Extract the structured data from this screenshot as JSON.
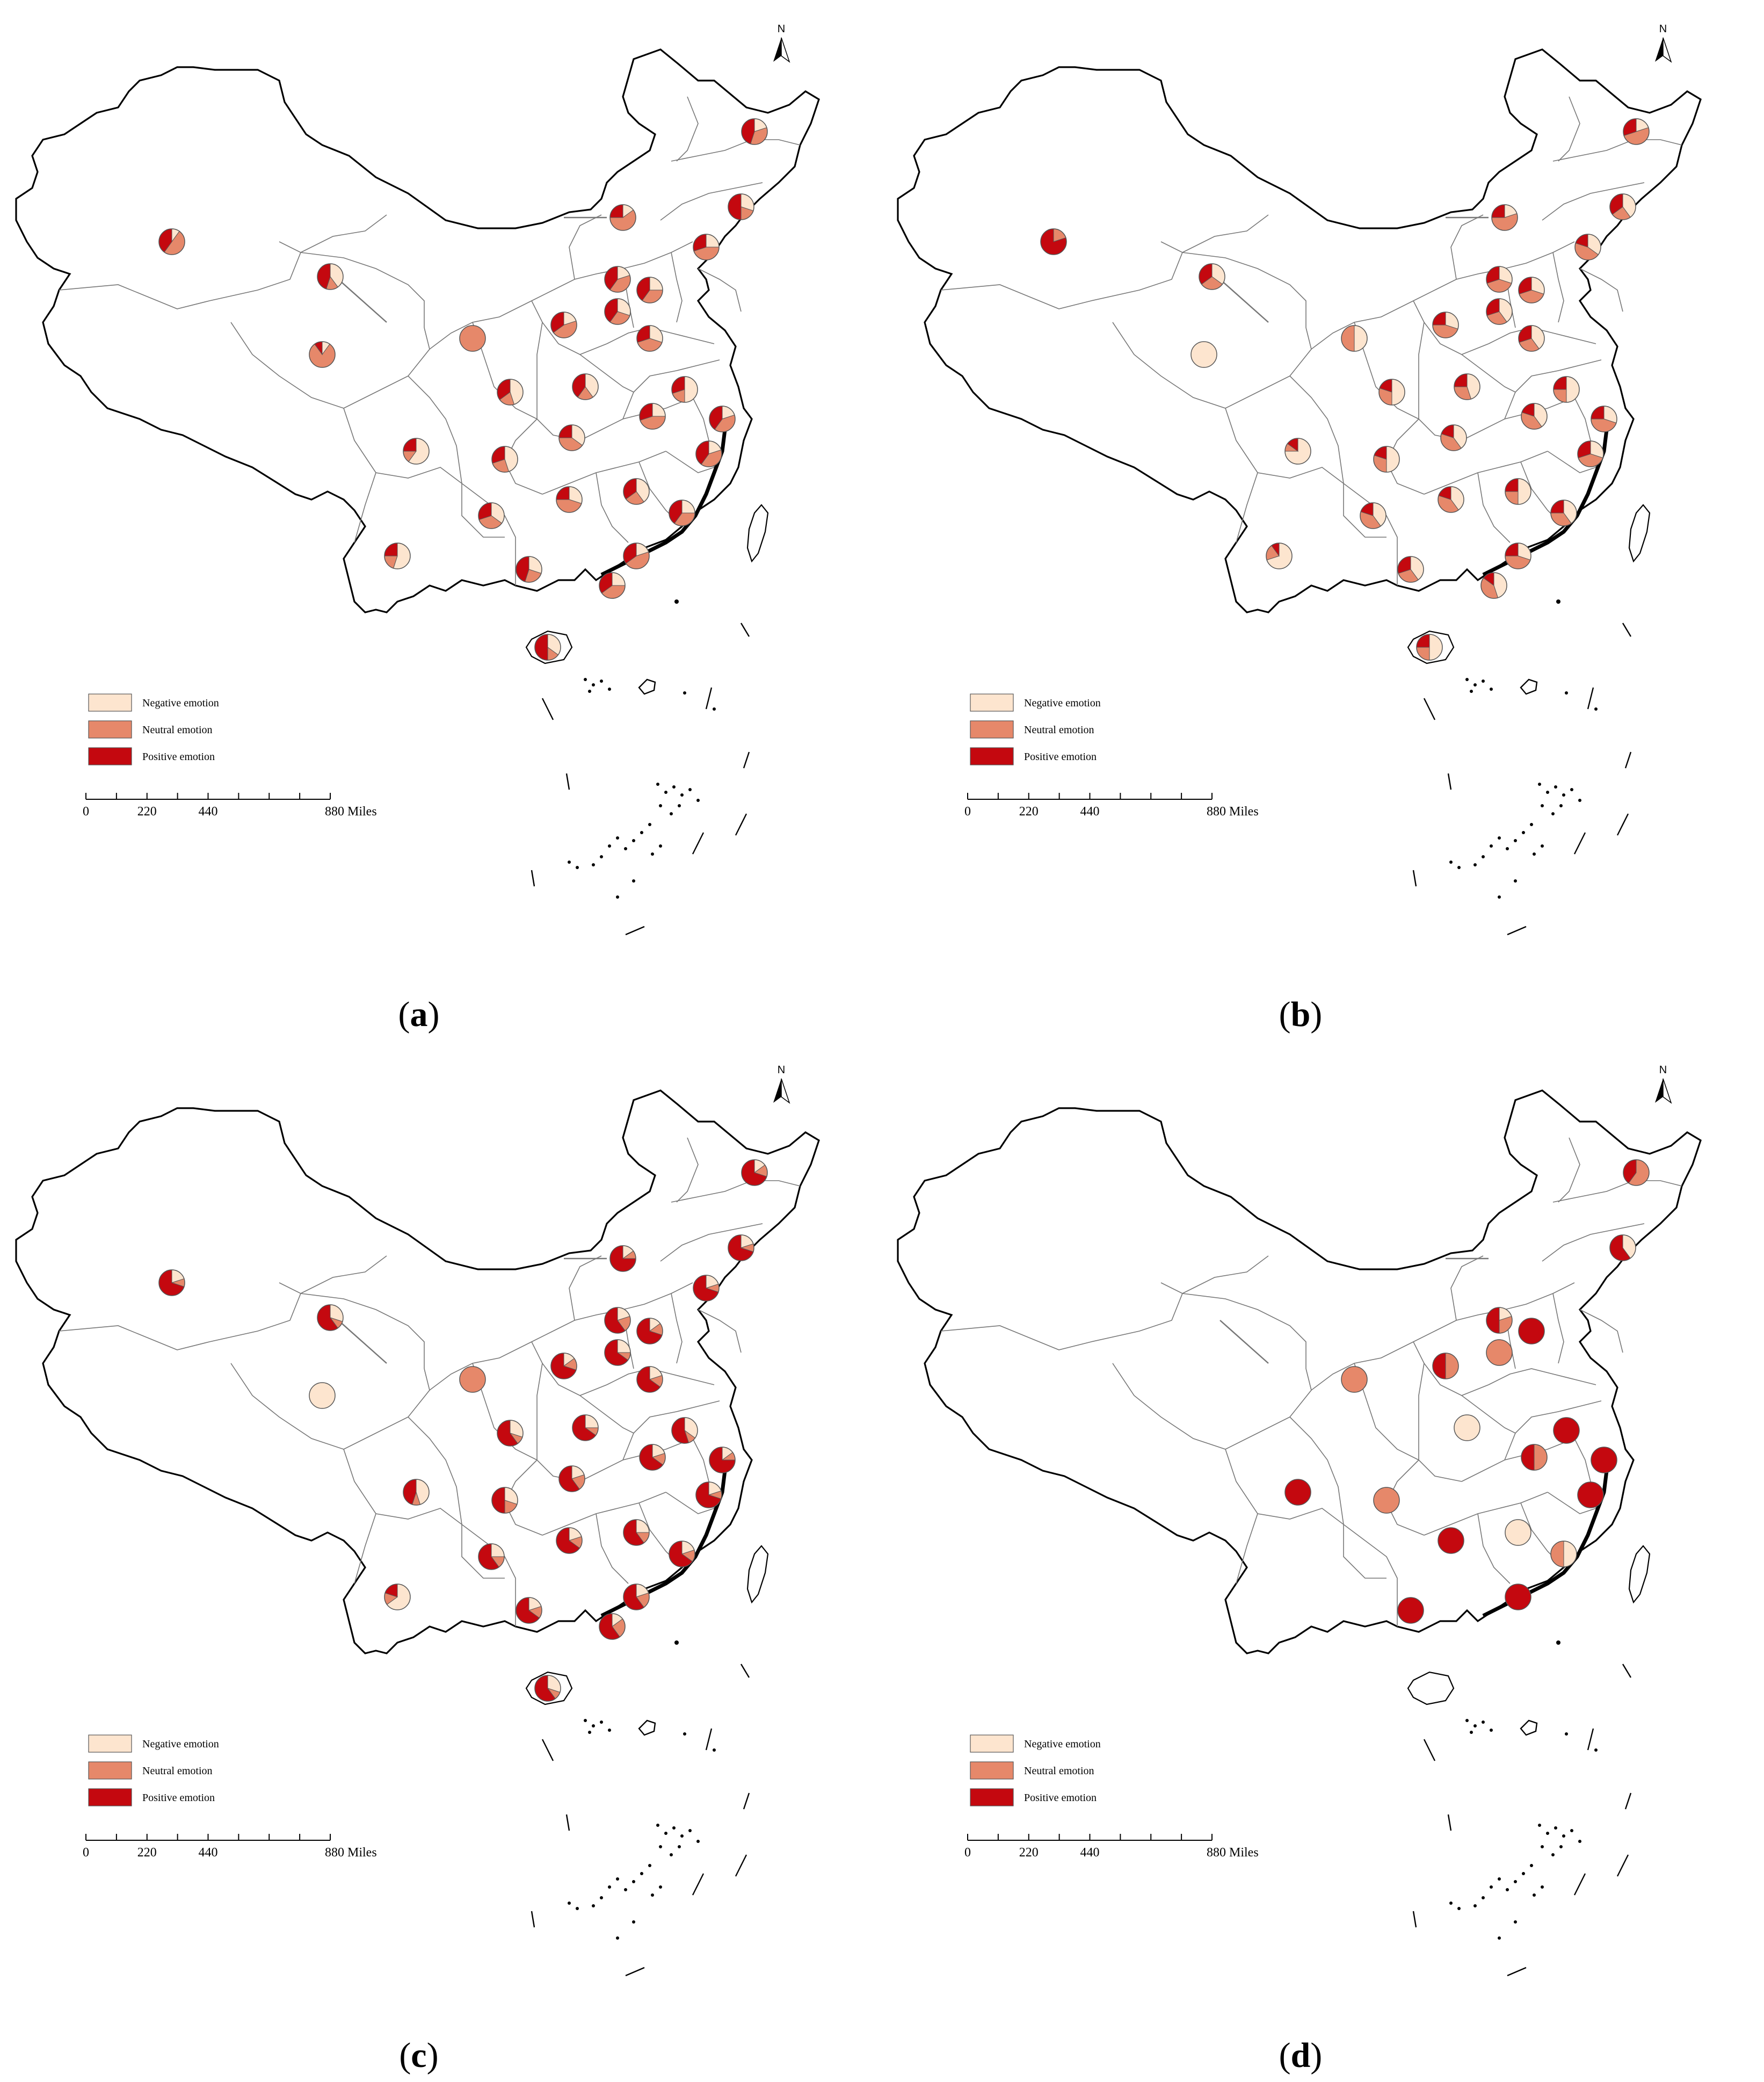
{
  "colors": {
    "negative": "#fde5cf",
    "neutral": "#e6886a",
    "positive": "#c4080f",
    "outline": "#000000",
    "province": "#777777"
  },
  "legend": {
    "negative": "Negative emotion",
    "neutral": "Neutral emotion",
    "positive": "Positive emotion"
  },
  "scale": {
    "ticks": [
      "0",
      "220",
      "440",
      "880 Miles"
    ]
  },
  "north_label": "N",
  "panels": [
    {
      "label_prefix": "(",
      "label_letter": "a",
      "label_suffix": ")",
      "pies": [
        [
          0.2,
          0.35,
          0.45
        ],
        [
          0.15,
          0.6,
          0.25
        ],
        [
          0.3,
          0.2,
          0.5
        ],
        [
          0.25,
          0.45,
          0.3
        ],
        [
          0.0,
          1.0,
          0.0
        ],
        [
          0.2,
          0.4,
          0.4
        ],
        [
          0.25,
          0.35,
          0.4
        ],
        [
          0.4,
          0.15,
          0.45
        ],
        [
          0.2,
          0.45,
          0.35
        ],
        [
          0.3,
          0.3,
          0.4
        ],
        [
          0.1,
          0.8,
          0.1
        ],
        [
          0.3,
          0.4,
          0.3
        ],
        [
          0.4,
          0.2,
          0.4
        ],
        [
          0.45,
          0.2,
          0.35
        ],
        [
          0.25,
          0.45,
          0.3
        ],
        [
          0.5,
          0.2,
          0.3
        ],
        [
          0.2,
          0.4,
          0.4
        ],
        [
          0.35,
          0.4,
          0.25
        ],
        [
          0.2,
          0.4,
          0.4
        ],
        [
          0.45,
          0.25,
          0.3
        ],
        [
          0.3,
          0.45,
          0.25
        ],
        [
          0.4,
          0.25,
          0.35
        ],
        [
          0.25,
          0.35,
          0.4
        ],
        [
          0.6,
          0.15,
          0.25
        ],
        [
          0.2,
          0.45,
          0.35
        ],
        [
          0.35,
          0.35,
          0.3
        ],
        [
          0.3,
          0.25,
          0.45
        ],
        [
          0.25,
          0.4,
          0.35
        ],
        [
          0.1,
          0.5,
          0.4
        ],
        [
          0.55,
          0.2,
          0.25
        ],
        [
          0.35,
          0.15,
          0.5
        ]
      ]
    },
    {
      "label_prefix": "(",
      "label_letter": "b",
      "label_suffix": ")",
      "pies": [
        [
          0.2,
          0.5,
          0.3
        ],
        [
          0.2,
          0.55,
          0.25
        ],
        [
          0.4,
          0.25,
          0.35
        ],
        [
          0.35,
          0.45,
          0.2
        ],
        [
          0.5,
          0.5,
          0.0
        ],
        [
          0.3,
          0.4,
          0.3
        ],
        [
          0.3,
          0.4,
          0.3
        ],
        [
          0.35,
          0.3,
          0.35
        ],
        [
          0.3,
          0.45,
          0.25
        ],
        [
          0.4,
          0.3,
          0.3
        ],
        [
          1.0,
          0.0,
          0.0
        ],
        [
          0.4,
          0.3,
          0.3
        ],
        [
          0.45,
          0.3,
          0.25
        ],
        [
          0.5,
          0.3,
          0.2
        ],
        [
          0.4,
          0.4,
          0.2
        ],
        [
          0.5,
          0.25,
          0.25
        ],
        [
          0.3,
          0.45,
          0.25
        ],
        [
          0.4,
          0.4,
          0.2
        ],
        [
          0.3,
          0.4,
          0.3
        ],
        [
          0.5,
          0.3,
          0.2
        ],
        [
          0.4,
          0.4,
          0.2
        ],
        [
          0.5,
          0.25,
          0.25
        ],
        [
          0.4,
          0.35,
          0.25
        ],
        [
          0.75,
          0.1,
          0.15
        ],
        [
          0.3,
          0.45,
          0.25
        ],
        [
          0.4,
          0.4,
          0.2
        ],
        [
          0.4,
          0.3,
          0.3
        ],
        [
          0.45,
          0.4,
          0.15
        ],
        [
          0.0,
          0.2,
          0.8
        ],
        [
          0.7,
          0.2,
          0.1
        ],
        [
          0.5,
          0.25,
          0.25
        ]
      ]
    },
    {
      "label_prefix": "(",
      "label_letter": "c",
      "label_suffix": ")",
      "pies": [
        [
          0.15,
          0.15,
          0.7
        ],
        [
          0.15,
          0.1,
          0.75
        ],
        [
          0.2,
          0.1,
          0.7
        ],
        [
          0.2,
          0.1,
          0.7
        ],
        [
          0.0,
          1.0,
          0.0
        ],
        [
          0.2,
          0.2,
          0.6
        ],
        [
          0.15,
          0.15,
          0.7
        ],
        [
          0.3,
          0.1,
          0.6
        ],
        [
          0.15,
          0.15,
          0.7
        ],
        [
          0.25,
          0.1,
          0.65
        ],
        [
          1.0,
          0.0,
          0.0
        ],
        [
          0.2,
          0.15,
          0.65
        ],
        [
          0.25,
          0.1,
          0.65
        ],
        [
          0.3,
          0.1,
          0.6
        ],
        [
          0.2,
          0.15,
          0.65
        ],
        [
          0.35,
          0.1,
          0.55
        ],
        [
          0.15,
          0.1,
          0.75
        ],
        [
          0.2,
          0.2,
          0.6
        ],
        [
          0.2,
          0.1,
          0.7
        ],
        [
          0.3,
          0.2,
          0.5
        ],
        [
          0.2,
          0.15,
          0.65
        ],
        [
          0.25,
          0.15,
          0.6
        ],
        [
          0.2,
          0.15,
          0.65
        ],
        [
          0.45,
          0.1,
          0.45
        ],
        [
          0.2,
          0.2,
          0.6
        ],
        [
          0.25,
          0.15,
          0.6
        ],
        [
          0.2,
          0.15,
          0.65
        ],
        [
          0.15,
          0.25,
          0.6
        ],
        [
          0.2,
          0.1,
          0.7
        ],
        [
          0.65,
          0.15,
          0.2
        ],
        [
          0.3,
          0.1,
          0.6
        ]
      ]
    },
    {
      "label_prefix": "(",
      "label_letter": "d",
      "label_suffix": ")",
      "pies": [
        [
          0.0,
          0.6,
          0.4
        ],
        null,
        [
          0.4,
          0.0,
          0.6
        ],
        null,
        [
          0.0,
          1.0,
          0.0
        ],
        [
          0.2,
          0.3,
          0.5
        ],
        [
          0.0,
          0.0,
          1.0
        ],
        null,
        [
          0.0,
          0.5,
          0.5
        ],
        [
          0.0,
          1.0,
          0.0
        ],
        null,
        null,
        [
          1.0,
          0.0,
          0.0
        ],
        null,
        [
          0.0,
          0.5,
          0.5
        ],
        [
          0.0,
          0.0,
          1.0
        ],
        [
          0.0,
          0.0,
          1.0
        ],
        null,
        [
          0.0,
          0.0,
          1.0
        ],
        [
          0.0,
          1.0,
          0.0
        ],
        [
          0.0,
          0.0,
          1.0
        ],
        [
          1.0,
          0.0,
          0.0
        ],
        [
          0.5,
          0.5,
          0.0
        ],
        [
          0.0,
          0.0,
          1.0
        ],
        [
          0.0,
          0.0,
          1.0
        ],
        null,
        [
          0.0,
          0.0,
          1.0
        ],
        null,
        null,
        null,
        null
      ]
    }
  ]
}
